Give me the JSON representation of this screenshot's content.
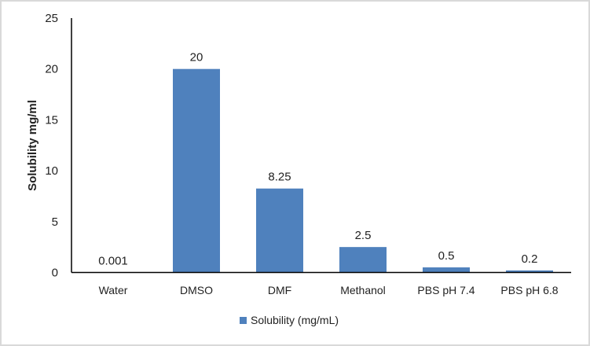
{
  "chart_data": {
    "type": "bar",
    "title": "",
    "xlabel": "",
    "ylabel": "Solubility mg/ml",
    "ylim": [
      0,
      25
    ],
    "yticks": [
      0,
      5,
      10,
      15,
      20,
      25
    ],
    "categories": [
      "Water",
      "DMSO",
      "DMF",
      "Methanol",
      "PBS pH 7.4",
      "PBS pH 6.8"
    ],
    "series": [
      {
        "name": "Solubility (mg/mL)",
        "values": [
          0.001,
          20,
          8.25,
          2.5,
          0.5,
          0.2
        ],
        "labels": [
          "0.001",
          "20",
          "8.25",
          "2.5",
          "0.5",
          "0.2"
        ],
        "color": "#4f81bd"
      }
    ],
    "grid": false,
    "legend": "bottom"
  }
}
